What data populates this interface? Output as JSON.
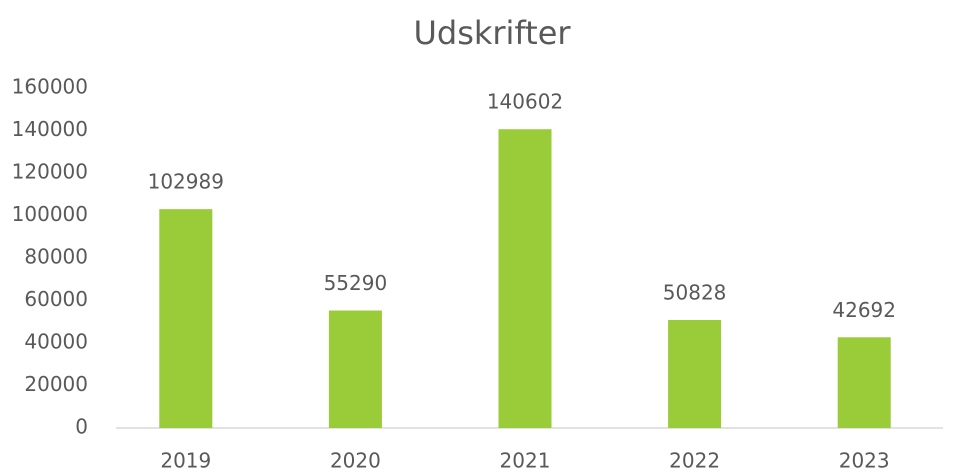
{
  "chart_data": {
    "type": "bar",
    "title": "Udskrifter",
    "categories": [
      "2019",
      "2020",
      "2021",
      "2022",
      "2023"
    ],
    "values": [
      102989,
      55290,
      140602,
      50828,
      42692
    ],
    "color": "#9acb38",
    "ylim": [
      0,
      160000
    ],
    "yticks": [
      0,
      20000,
      40000,
      60000,
      80000,
      100000,
      120000,
      140000,
      160000
    ],
    "grid": false
  }
}
